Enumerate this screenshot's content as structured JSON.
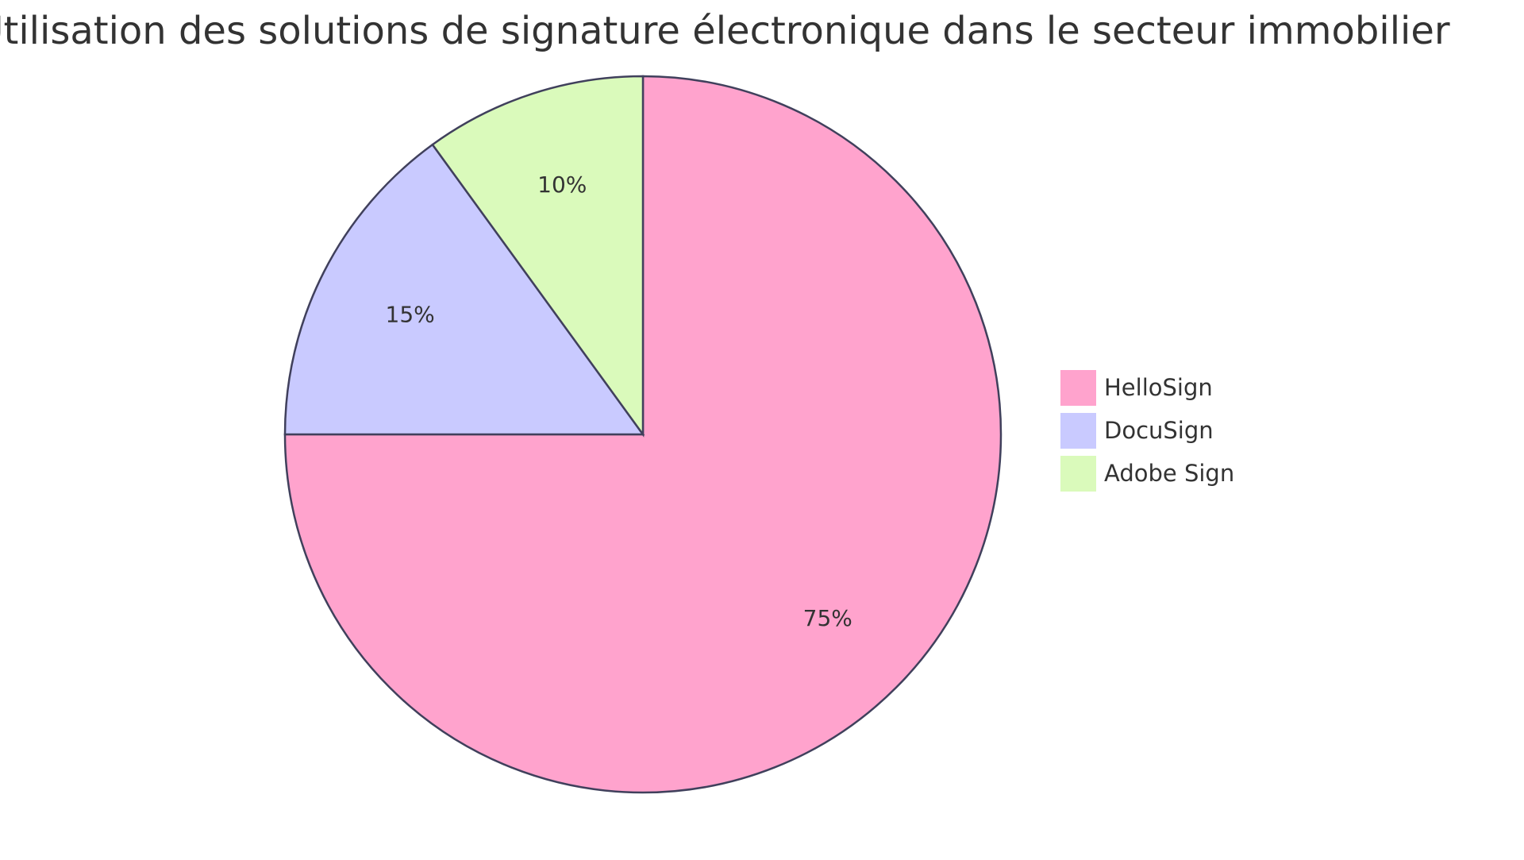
{
  "chart_data": {
    "type": "pie",
    "title": "Utilisation des solutions de signature électronique dans le secteur immobilier",
    "categories": [
      "HelloSign",
      "DocuSign",
      "Adobe Sign"
    ],
    "values": [
      75,
      15,
      10
    ],
    "value_labels": [
      "75%",
      "15%",
      "10%"
    ],
    "colors": [
      "#ffa3cd",
      "#c9caff",
      "#dafabb"
    ]
  }
}
